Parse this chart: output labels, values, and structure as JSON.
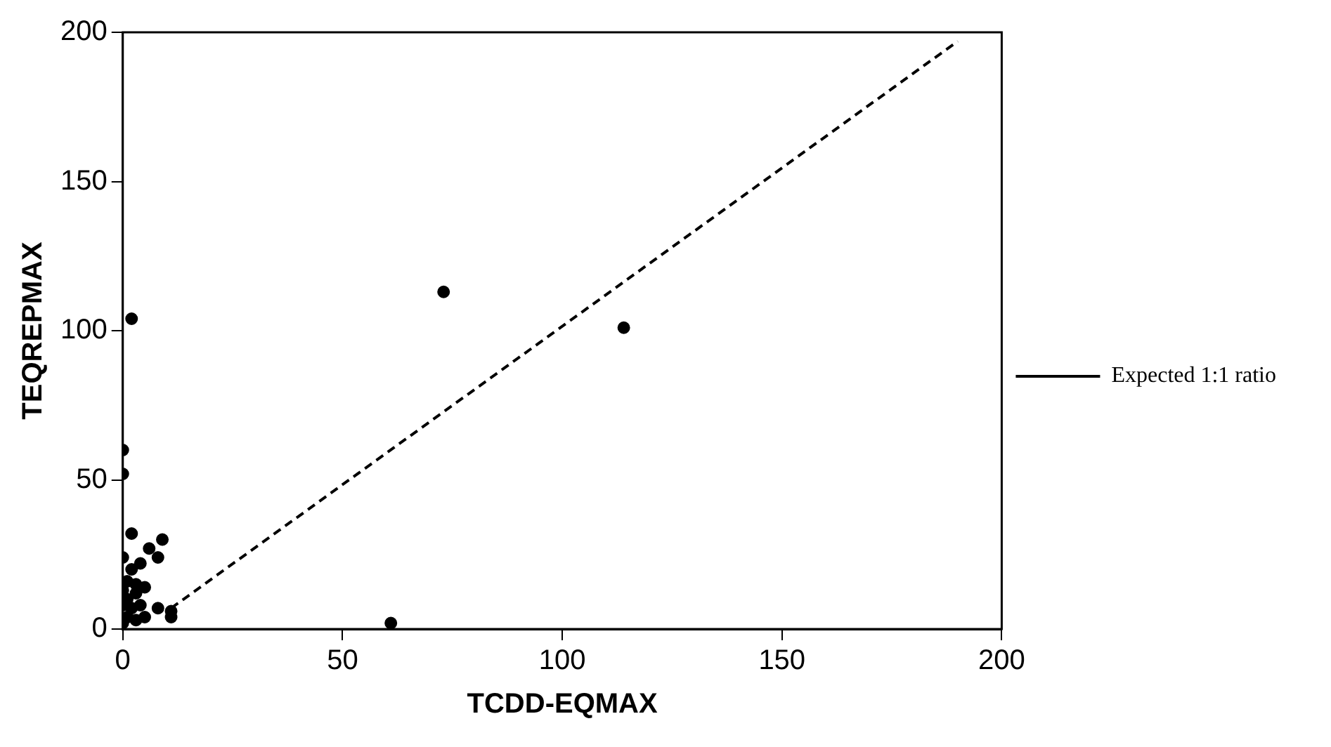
{
  "chart_data": {
    "type": "scatter",
    "xlabel": "TCDD-EQMAX",
    "ylabel": "TEQREPMAX",
    "xlim": [
      0,
      200
    ],
    "ylim": [
      0,
      200
    ],
    "xticks": [
      0,
      50,
      100,
      150,
      200
    ],
    "yticks": [
      0,
      50,
      100,
      150,
      200
    ],
    "grid": false,
    "legend": "right",
    "marker": "circle",
    "series": [
      {
        "color": "#000000",
        "x": [
          2,
          73,
          114,
          61,
          0,
          0,
          2,
          9,
          6,
          8,
          0,
          4,
          2,
          0,
          3,
          5,
          1,
          0,
          2,
          3,
          1,
          0,
          5,
          8,
          11,
          11,
          3,
          1,
          4
        ],
        "values": [
          104,
          113,
          101,
          2,
          60,
          52,
          32,
          30,
          27,
          24,
          24,
          22,
          20,
          13,
          15,
          14,
          10,
          8,
          7,
          3,
          4,
          2,
          4,
          7,
          6,
          4,
          12,
          16,
          8
        ]
      },
      {
        "type": "line",
        "name": "Expected 1:1 ratio",
        "color": "#000000",
        "line_style": "dashed",
        "marker": "none",
        "x": [
          11,
          190
        ],
        "values": [
          7,
          197
        ]
      }
    ]
  }
}
